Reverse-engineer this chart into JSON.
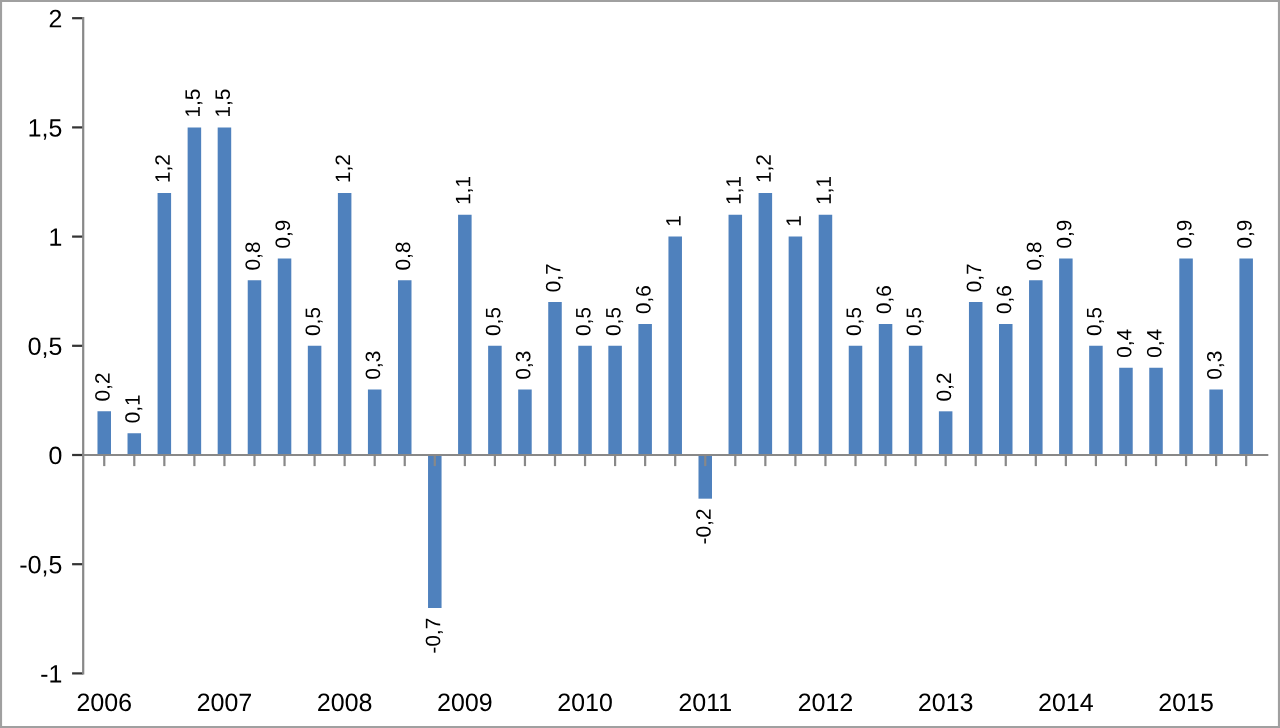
{
  "chart_data": {
    "type": "bar",
    "color": "#4f81bd",
    "categories": [
      "2006",
      null,
      null,
      null,
      "2007",
      null,
      null,
      null,
      "2008",
      null,
      null,
      null,
      "2009",
      null,
      null,
      null,
      "2010",
      null,
      null,
      null,
      "2011",
      null,
      null,
      null,
      "2012",
      null,
      null,
      null,
      "2013",
      null,
      null,
      null,
      "2014",
      null,
      null,
      null,
      "2015",
      null,
      null
    ],
    "values": [
      0.2,
      0.1,
      1.2,
      1.5,
      1.5,
      0.8,
      0.9,
      0.5,
      1.2,
      0.3,
      0.8,
      -0.7,
      1.1,
      0.5,
      0.3,
      0.7,
      0.5,
      0.5,
      0.6,
      1,
      -0.2,
      1.1,
      1.2,
      1,
      1.1,
      0.5,
      0.6,
      0.5,
      0.2,
      0.7,
      0.6,
      0.8,
      0.9,
      0.5,
      0.4,
      0.4,
      0.9,
      0.3,
      0.9
    ],
    "value_labels": [
      "0,2",
      "0,1",
      "1,2",
      "1,5",
      "1,5",
      "0,8",
      "0,9",
      "0,5",
      "1,2",
      "0,3",
      "0,8",
      "-0,7",
      "1,1",
      "0,5",
      "0,3",
      "0,7",
      "0,5",
      "0,5",
      "0,6",
      "1",
      "-0,2",
      "1,1",
      "1,2",
      "1",
      "1,1",
      "0,5",
      "0,6",
      "0,5",
      "0,2",
      "0,7",
      "0,6",
      "0,8",
      "0,9",
      "0,5",
      "0,4",
      "0,4",
      "0,9",
      "0,3",
      "0,9"
    ],
    "ylim": [
      -1,
      2
    ],
    "yticks": [
      {
        "value": -1,
        "label": "-1"
      },
      {
        "value": -0.5,
        "label": "-0,5"
      },
      0,
      {
        "value": 0.5,
        "label": "0,5"
      },
      1,
      {
        "value": 1.5,
        "label": "1,5"
      },
      2
    ],
    "legend": false
  }
}
